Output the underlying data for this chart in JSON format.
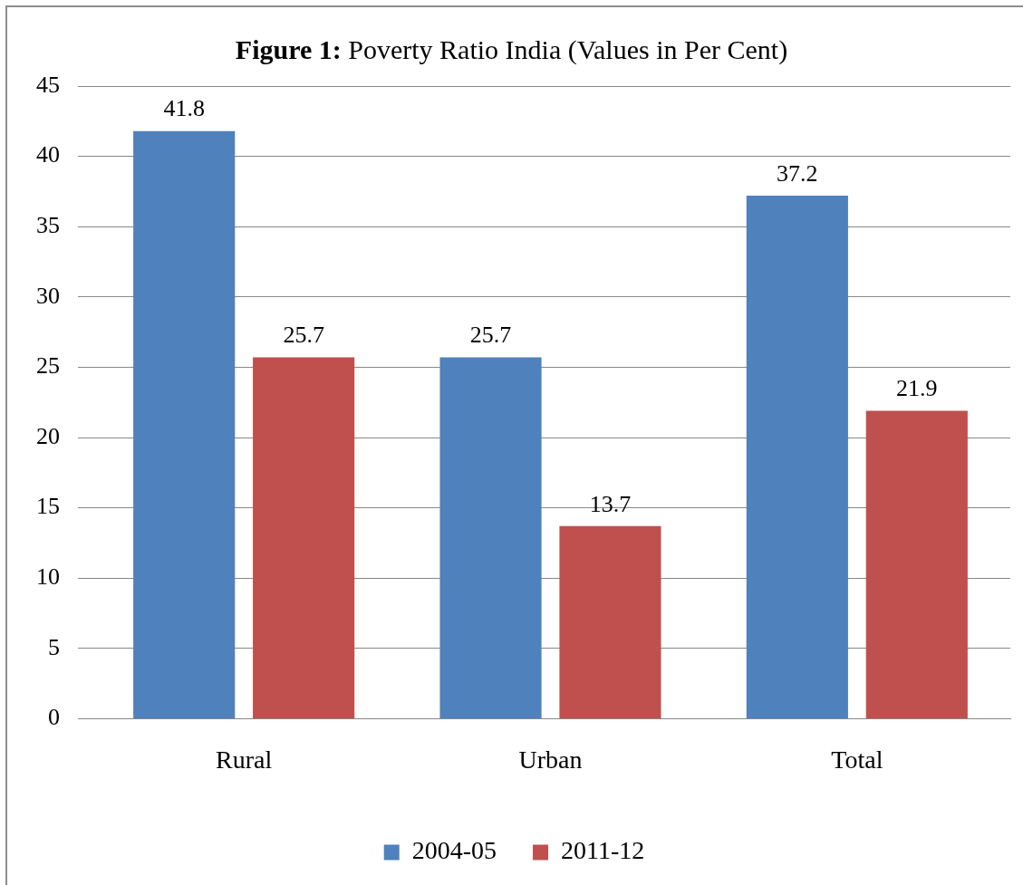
{
  "chart_data": {
    "type": "bar",
    "title": "Figure 1: Poverty Ratio India (Values in Per Cent)",
    "categories": [
      "Rural",
      "Urban",
      "Total"
    ],
    "series": [
      {
        "name": "2004-05",
        "color": "#4f81bd",
        "values": [
          41.8,
          25.7,
          37.2
        ]
      },
      {
        "name": "2011-12",
        "color": "#c0504d",
        "values": [
          25.7,
          13.7,
          21.9
        ]
      }
    ],
    "ylim": [
      0,
      45
    ],
    "yticks": [
      0,
      5,
      10,
      15,
      20,
      25,
      30,
      35,
      40,
      45
    ],
    "grid": "y",
    "legend": "bottom",
    "data_labels": true
  }
}
